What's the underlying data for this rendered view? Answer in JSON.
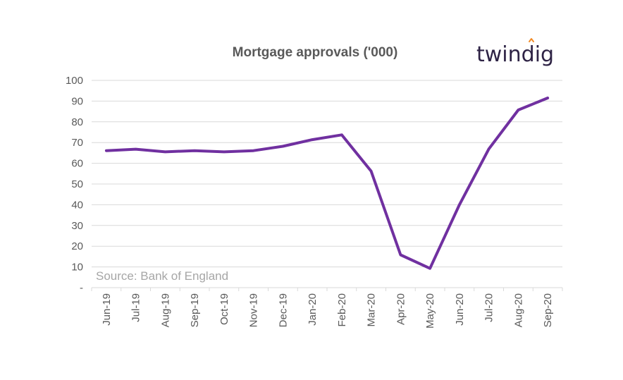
{
  "chart_data": {
    "type": "line",
    "title": "Mortgage approvals ('000)",
    "xlabel": "",
    "ylabel": "",
    "categories": [
      "Jun-19",
      "Jul-19",
      "Aug-19",
      "Sep-19",
      "Oct-19",
      "Nov-19",
      "Dec-19",
      "Jan-20",
      "Feb-20",
      "Mar-20",
      "Apr-20",
      "May-20",
      "Jun-20",
      "Jul-20",
      "Aug-20",
      "Sep-20"
    ],
    "series": [
      {
        "color": "#7030a0",
        "values": [
          66.1,
          66.8,
          65.5,
          66.1,
          65.5,
          66.1,
          68.2,
          71.4,
          73.7,
          56.2,
          15.8,
          9.3,
          40.0,
          66.9,
          85.7,
          91.5
        ]
      }
    ],
    "ylim": [
      0,
      100
    ],
    "yticks": [
      0,
      10,
      20,
      30,
      40,
      50,
      60,
      70,
      80,
      90,
      100
    ],
    "ytick_labels": [
      "-",
      "10",
      "20",
      "30",
      "40",
      "50",
      "60",
      "70",
      "80",
      "90",
      "100"
    ],
    "grid": true,
    "annotations": [
      "Source: Bank of England"
    ]
  },
  "logo": {
    "text": "twindig",
    "text_color": "#2e2345",
    "accent_color": "#f28c28"
  }
}
